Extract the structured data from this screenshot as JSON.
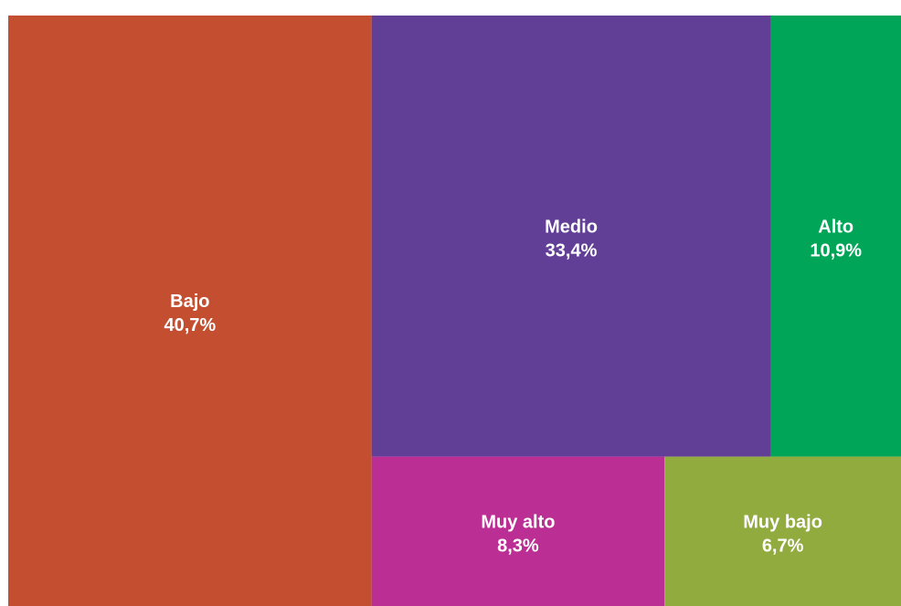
{
  "chart_data": {
    "type": "treemap",
    "title": "",
    "series": [
      {
        "name": "Bajo",
        "value": 40.7,
        "label": "40,7%",
        "color": "#c44f30"
      },
      {
        "name": "Medio",
        "value": 33.4,
        "label": "33,4%",
        "color": "#623f97"
      },
      {
        "name": "Alto",
        "value": 10.9,
        "label": "10,9%",
        "color": "#00a558"
      },
      {
        "name": "Muy alto",
        "value": 8.3,
        "label": "8,3%",
        "color": "#bb2f94"
      },
      {
        "name": "Muy bajo",
        "value": 6.7,
        "label": "6,7%",
        "color": "#92ab3f"
      }
    ]
  }
}
